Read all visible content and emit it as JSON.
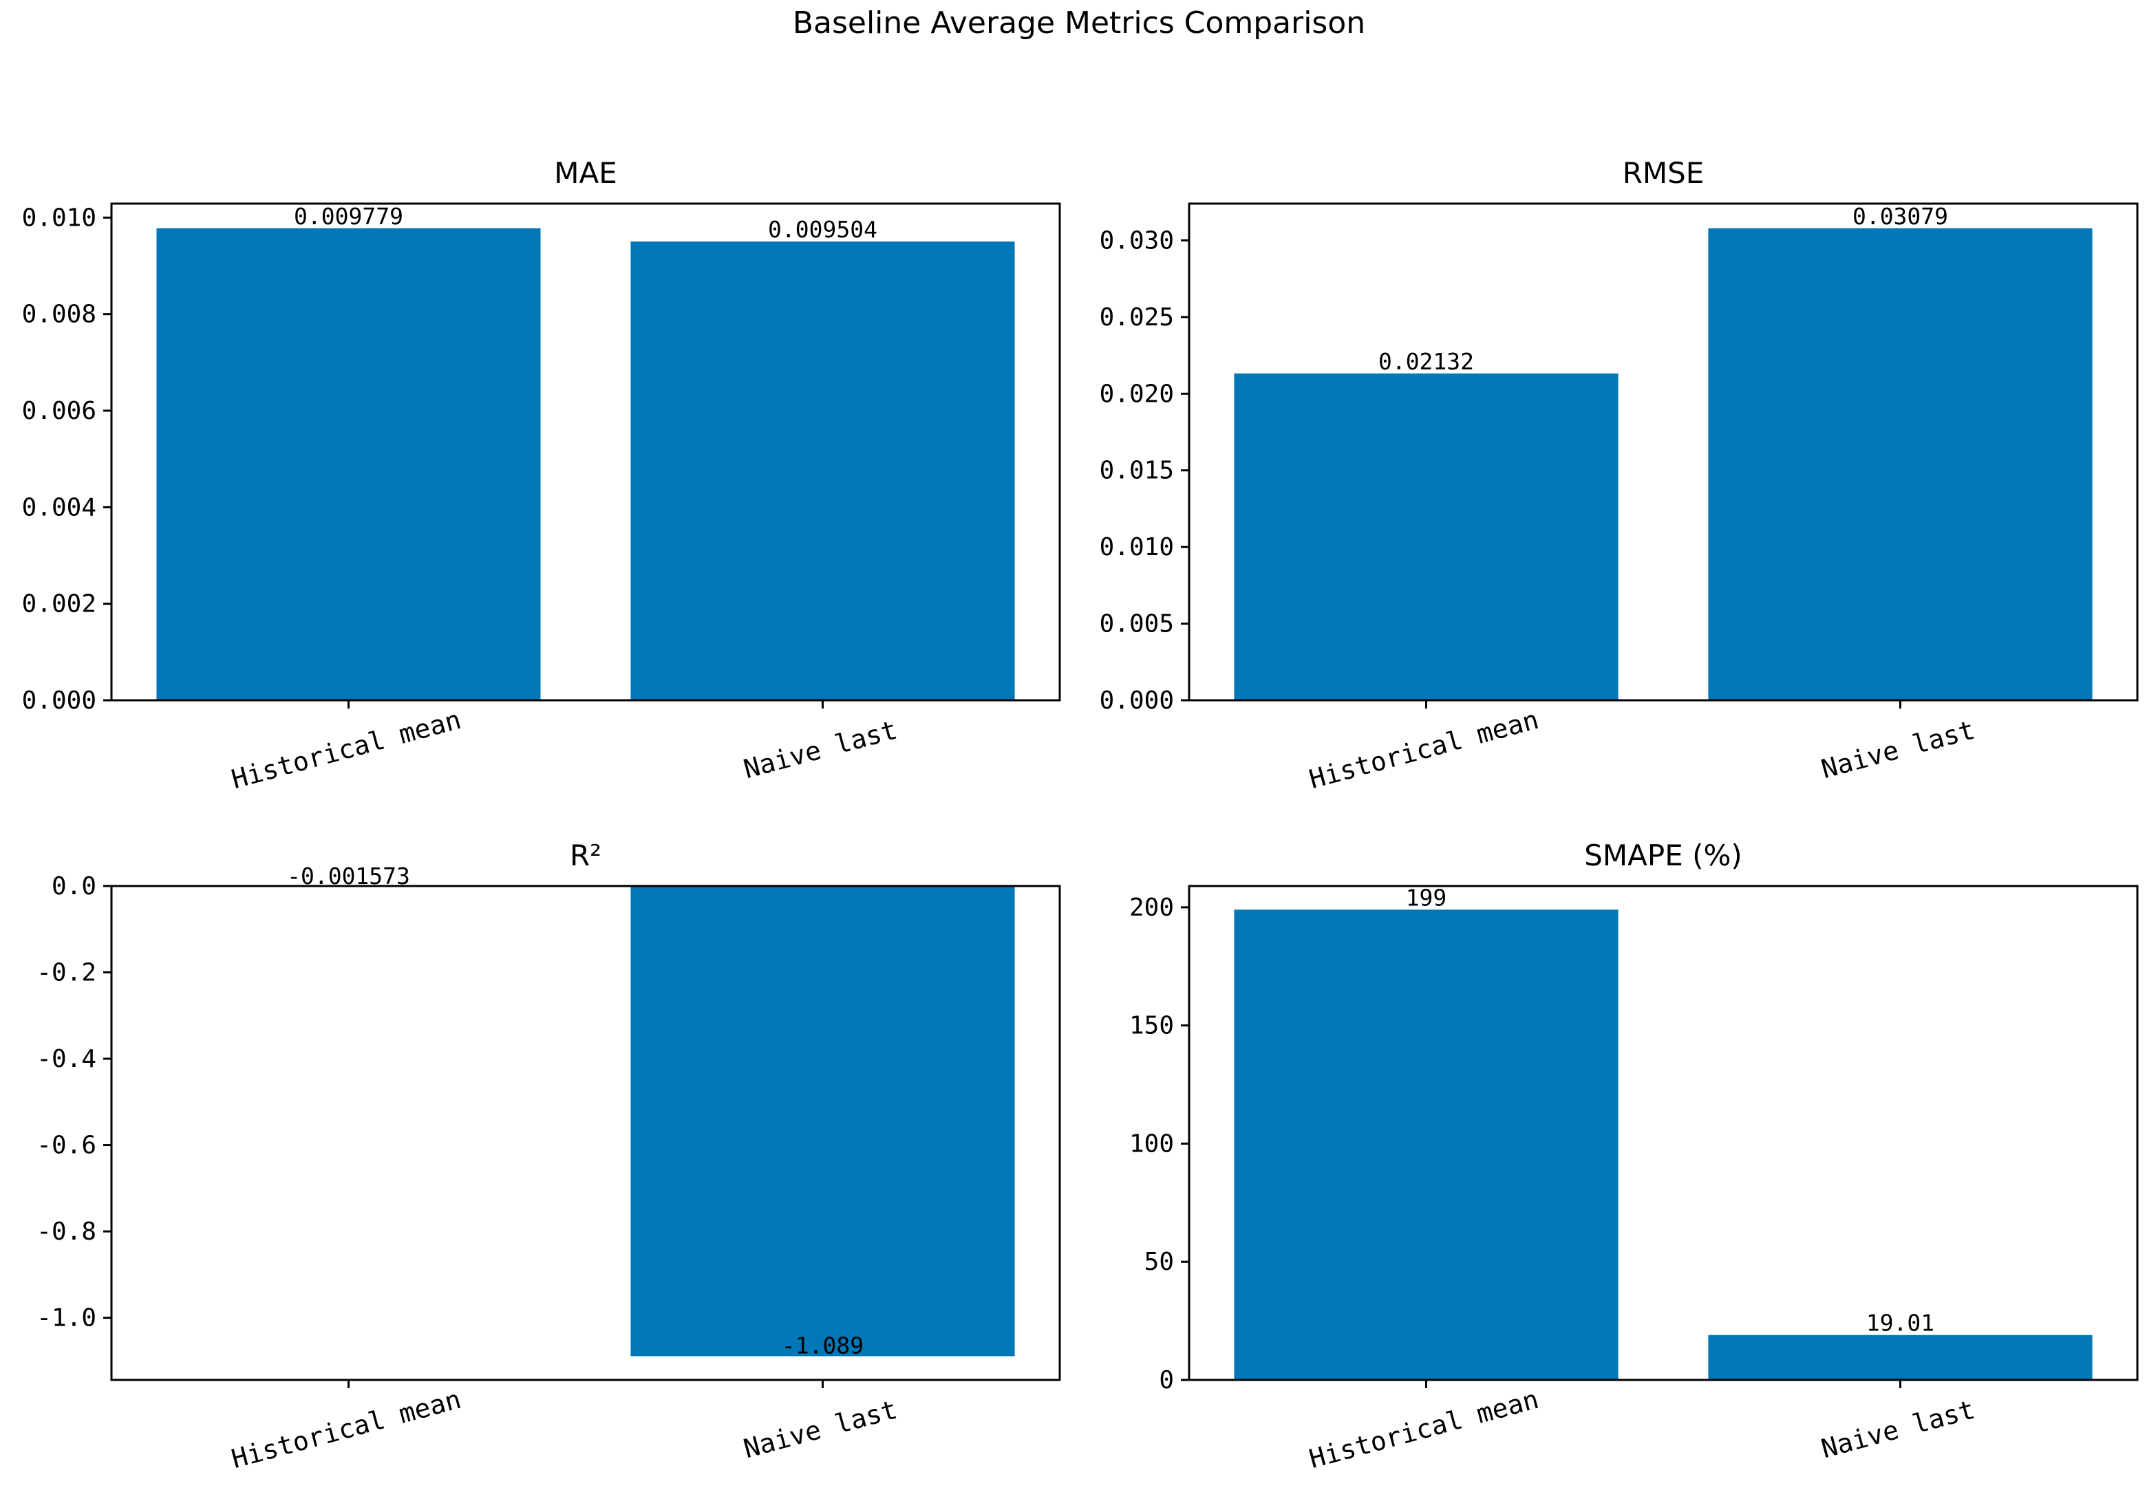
{
  "suptitle": "Baseline Average Metrics Comparison",
  "bar_color": "#0077b6",
  "chart_data": [
    {
      "type": "bar",
      "title": "MAE",
      "categories": [
        "Historical mean",
        "Naive last"
      ],
      "values": [
        0.009779,
        0.009504
      ],
      "value_labels": [
        "0.009779",
        "0.009504"
      ],
      "ylim": [
        0,
        0.01029
      ],
      "yticks": [
        0.0,
        0.002,
        0.004,
        0.006,
        0.008,
        0.01
      ],
      "ytick_labels": [
        "0.000",
        "0.002",
        "0.004",
        "0.006",
        "0.008",
        "0.010"
      ],
      "xlabel": "",
      "ylabel": "",
      "grid": false
    },
    {
      "type": "bar",
      "title": "RMSE",
      "categories": [
        "Historical mean",
        "Naive last"
      ],
      "values": [
        0.02132,
        0.03079
      ],
      "value_labels": [
        "0.02132",
        "0.03079"
      ],
      "ylim": [
        0,
        0.0324
      ],
      "yticks": [
        0.0,
        0.005,
        0.01,
        0.015,
        0.02,
        0.025,
        0.03
      ],
      "ytick_labels": [
        "0.000",
        "0.005",
        "0.010",
        "0.015",
        "0.020",
        "0.025",
        "0.030"
      ],
      "xlabel": "",
      "ylabel": "",
      "grid": false
    },
    {
      "type": "bar",
      "title": "R²",
      "categories": [
        "Historical mean",
        "Naive last"
      ],
      "values": [
        -0.001573,
        -1.089
      ],
      "value_labels": [
        "-0.001573",
        "-1.089"
      ],
      "ylim": [
        -1.144,
        0.0
      ],
      "yticks": [
        0.0,
        -0.2,
        -0.4,
        -0.6,
        -0.8,
        -1.0
      ],
      "ytick_labels": [
        "0.0",
        "-0.2",
        "-0.4",
        "-0.6",
        "-0.8",
        "-1.0"
      ],
      "xlabel": "",
      "ylabel": "",
      "grid": false
    },
    {
      "type": "bar",
      "title": "SMAPE (%)",
      "categories": [
        "Historical mean",
        "Naive last"
      ],
      "values": [
        199,
        19.01
      ],
      "value_labels": [
        "199",
        "19.01"
      ],
      "ylim": [
        0,
        209
      ],
      "yticks": [
        0,
        50,
        100,
        150,
        200
      ],
      "ytick_labels": [
        "0",
        "50",
        "100",
        "150",
        "200"
      ],
      "xlabel": "",
      "ylabel": "",
      "grid": false
    }
  ]
}
